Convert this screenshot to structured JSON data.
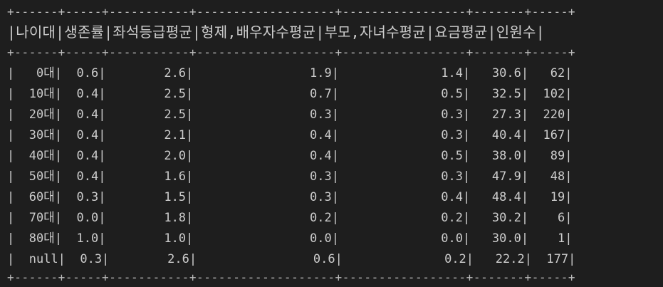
{
  "table": {
    "border": "+------+-----+-----------+-------------------+-----------------+-------+-----+",
    "header": "|나이대|생존률|좌석등급평균|형제,배우자수평균|부모,자녀수평균|요금평균|인원수|",
    "rows": [
      "|   0대|  0.6|        2.6|                1.9|              1.4|   30.6|   62|",
      "|  10대|  0.4|        2.5|                0.7|              0.5|   32.5|  102|",
      "|  20대|  0.4|        2.5|                0.3|              0.3|   27.3|  220|",
      "|  30대|  0.4|        2.1|                0.4|              0.3|   40.4|  167|",
      "|  40대|  0.4|        2.0|                0.4|              0.5|   38.0|   89|",
      "|  50대|  0.4|        1.6|                0.3|              0.3|   47.9|   48|",
      "|  60대|  0.3|        1.5|                0.3|              0.4|   48.4|   19|",
      "|  70대|  0.0|        1.8|                0.2|              0.2|   30.2|    6|",
      "|  80대|  1.0|        1.0|                0.0|              0.0|   30.0|    1|",
      "|  null|  0.3|        2.6|                0.6|              0.2|   22.2|  177|"
    ]
  }
}
